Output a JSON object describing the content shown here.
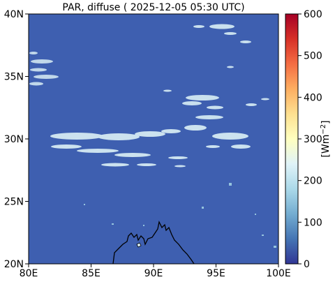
{
  "title": "PAR, diffuse ( 2025-12-05 05:30 UTC)",
  "colorbar_label_base": "[Wm",
  "colorbar_label_sup": "−2",
  "colorbar_label_end": "]",
  "colors": {
    "ocean": "#3e5fb0",
    "cloud_light": "#d9eef5",
    "cloud_mid": "#9fcfe3",
    "coastline": "#000000",
    "cmap": [
      "#313695",
      "#4575b4",
      "#74add1",
      "#abd9e9",
      "#e0f3f8",
      "#ffffbf",
      "#fee090",
      "#fdae61",
      "#f46d43",
      "#d73027",
      "#a50026"
    ]
  },
  "chart_data": {
    "type": "heatmap",
    "title": "PAR, diffuse ( 2025-12-05 05:30 UTC)",
    "xlim": [
      80,
      100
    ],
    "ylim": [
      20,
      40
    ],
    "x_ticks": [
      80,
      85,
      90,
      95,
      100
    ],
    "x_tick_labels": [
      "80E",
      "85E",
      "90E",
      "95E",
      "100E"
    ],
    "y_ticks": [
      20,
      25,
      30,
      35,
      40
    ],
    "y_tick_labels": [
      "20N",
      "25N",
      "30N",
      "35N",
      "40N"
    ],
    "colorbar": {
      "range": [
        0,
        600
      ],
      "ticks": [
        0,
        100,
        200,
        300,
        400,
        500,
        600
      ],
      "tick_labels": [
        "0",
        "100",
        "200",
        "300",
        "400",
        "500",
        "600"
      ],
      "label": "[Wm−2]",
      "colormap": "RdYlBu_r"
    },
    "background_value": 60,
    "cloud_band_value": 230
  }
}
